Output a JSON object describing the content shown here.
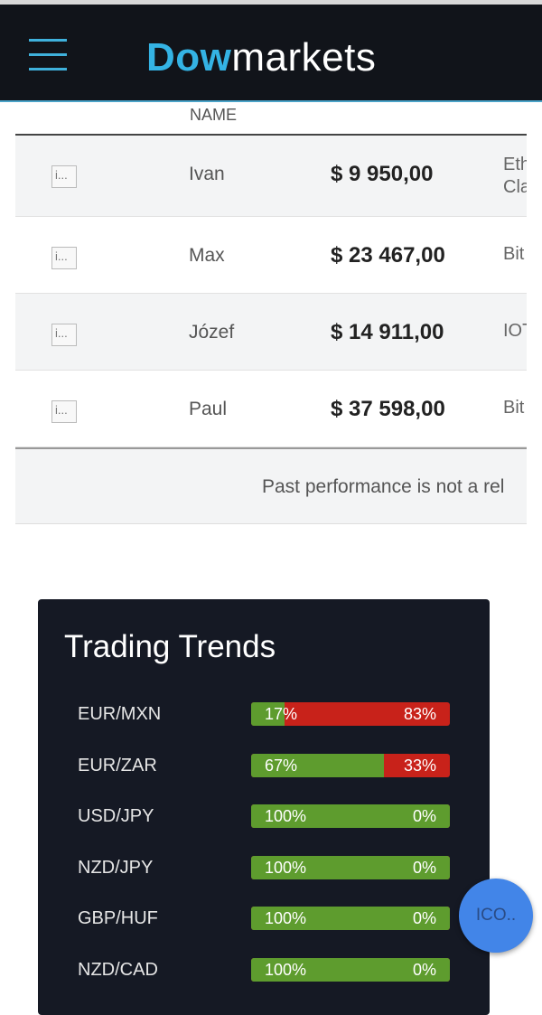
{
  "header": {
    "logo_prefix": "Dow",
    "logo_suffix": "markets",
    "menu_icon": "hamburger-icon",
    "accent": "#34b3e4"
  },
  "table": {
    "column_name": "NAME",
    "rows": [
      {
        "image_alt": "i...",
        "name": "Ivan",
        "amount": "$ 9 950,00",
        "asset": "Eth\nCla"
      },
      {
        "image_alt": "i...",
        "name": "Max",
        "amount": "$ 23 467,00",
        "asset": "Bit"
      },
      {
        "image_alt": "i...",
        "name": "Józef",
        "amount": "$ 14 911,00",
        "asset": "IOT"
      },
      {
        "image_alt": "i...",
        "name": "Paul",
        "amount": "$ 37 598,00",
        "asset": "Bit"
      }
    ],
    "disclaimer": "Past performance is not a rel"
  },
  "trends": {
    "title": "Trading Trends",
    "buy_color": "#5e9c2e",
    "sell_color": "#c8221a",
    "rows": [
      {
        "pair": "EUR/MXN",
        "buy": 17,
        "buy_label": "17%",
        "sell_label": "83%"
      },
      {
        "pair": "EUR/ZAR",
        "buy": 67,
        "buy_label": "67%",
        "sell_label": "33%"
      },
      {
        "pair": "USD/JPY",
        "buy": 100,
        "buy_label": "100%",
        "sell_label": "0%"
      },
      {
        "pair": "NZD/JPY",
        "buy": 100,
        "buy_label": "100%",
        "sell_label": "0%"
      },
      {
        "pair": "GBP/HUF",
        "buy": 100,
        "buy_label": "100%",
        "sell_label": "0%"
      },
      {
        "pair": "NZD/CAD",
        "buy": 100,
        "buy_label": "100%",
        "sell_label": "0%"
      }
    ]
  },
  "fab": {
    "label": "ICO.."
  }
}
